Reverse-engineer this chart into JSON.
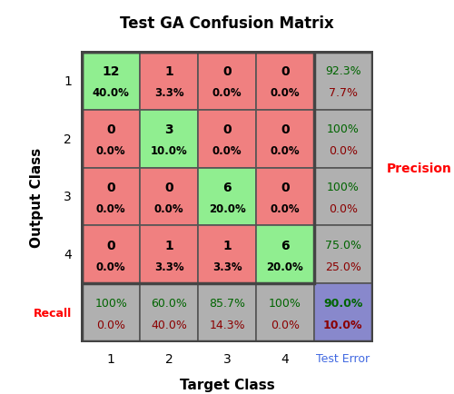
{
  "title": "Test GA Confusion Matrix",
  "matrix": [
    [
      12,
      1,
      0,
      0
    ],
    [
      0,
      3,
      0,
      0
    ],
    [
      0,
      0,
      6,
      0
    ],
    [
      0,
      1,
      1,
      6
    ]
  ],
  "matrix_pct": [
    [
      "40.0%",
      "3.3%",
      "0.0%",
      "0.0%"
    ],
    [
      "0.0%",
      "10.0%",
      "0.0%",
      "0.0%"
    ],
    [
      "0.0%",
      "0.0%",
      "20.0%",
      "0.0%"
    ],
    [
      "0.0%",
      "3.3%",
      "3.3%",
      "20.0%"
    ]
  ],
  "precision_top": [
    "92.3%",
    "100%",
    "100%",
    "75.0%"
  ],
  "precision_bot": [
    "7.7%",
    "0.0%",
    "0.0%",
    "25.0%"
  ],
  "recall_top": [
    "100%",
    "60.0%",
    "85.7%",
    "100%"
  ],
  "recall_bot": [
    "0.0%",
    "40.0%",
    "14.3%",
    "0.0%"
  ],
  "overall_top": "90.0%",
  "overall_bot": "10.0%",
  "color_green": "#90EE90",
  "color_red": "#F08080",
  "color_gray": "#B0B0B0",
  "color_blue_cell": "#8888CC",
  "color_dark_green": "#006400",
  "color_dark_red": "#8B0000",
  "color_recall_label": "#FF0000",
  "color_precision_label": "#FF0000",
  "color_test_error_label": "#4169E1",
  "xlabel": "Target Class",
  "ylabel": "Output Class",
  "row_labels": [
    "1",
    "2",
    "3",
    "4"
  ],
  "col_labels": [
    "1",
    "2",
    "3",
    "4"
  ]
}
